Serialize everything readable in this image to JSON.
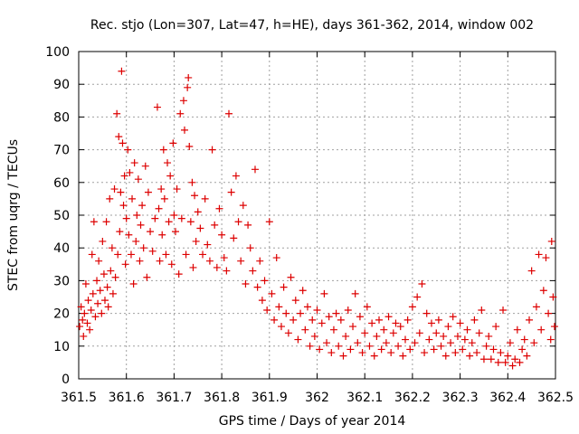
{
  "chart_data": {
    "type": "scatter",
    "title": "Rec. stjo (Lon=307, Lat=47, h=HE), days 361-362, 2014, window 002",
    "xlabel": "GPS time / Days of year 2014",
    "ylabel": "STEC from uqrg / TECUs",
    "xlim": [
      361.5,
      362.5
    ],
    "ylim": [
      0,
      100
    ],
    "grid": true,
    "marker": "+",
    "color": "#dd0000",
    "xticks": [
      "361.5",
      "361.6",
      "361.7",
      "361.8",
      "361.9",
      "362",
      "362.1",
      "362.2",
      "362.3",
      "362.4",
      "362.5"
    ],
    "yticks": [
      "0",
      "10",
      "20",
      "30",
      "40",
      "50",
      "60",
      "70",
      "80",
      "90",
      "100"
    ],
    "series": [
      {
        "points": [
          [
            361.502,
            16
          ],
          [
            361.505,
            22
          ],
          [
            361.508,
            18
          ],
          [
            361.51,
            13
          ],
          [
            361.512,
            20
          ],
          [
            361.515,
            29
          ],
          [
            361.518,
            17
          ],
          [
            361.52,
            24
          ],
          [
            361.523,
            15
          ],
          [
            361.526,
            21
          ],
          [
            361.528,
            38
          ],
          [
            361.53,
            26
          ],
          [
            361.532,
            48
          ],
          [
            361.535,
            19
          ],
          [
            361.538,
            30
          ],
          [
            361.54,
            23
          ],
          [
            361.542,
            36
          ],
          [
            361.545,
            27
          ],
          [
            361.548,
            20
          ],
          [
            361.55,
            42
          ],
          [
            361.553,
            32
          ],
          [
            361.555,
            24
          ],
          [
            361.558,
            48
          ],
          [
            361.56,
            28
          ],
          [
            361.562,
            22
          ],
          [
            361.565,
            55
          ],
          [
            361.567,
            33
          ],
          [
            361.57,
            40
          ],
          [
            361.572,
            26
          ],
          [
            361.575,
            58
          ],
          [
            361.577,
            31
          ],
          [
            361.58,
            81
          ],
          [
            361.582,
            38
          ],
          [
            361.584,
            74
          ],
          [
            361.586,
            45
          ],
          [
            361.588,
            57
          ],
          [
            361.59,
            94
          ],
          [
            361.592,
            72
          ],
          [
            361.594,
            53
          ],
          [
            361.596,
            62
          ],
          [
            361.598,
            35
          ],
          [
            361.6,
            49
          ],
          [
            361.603,
            70
          ],
          [
            361.605,
            44
          ],
          [
            361.607,
            63
          ],
          [
            361.61,
            38
          ],
          [
            361.612,
            55
          ],
          [
            361.615,
            29
          ],
          [
            361.617,
            66
          ],
          [
            361.62,
            42
          ],
          [
            361.622,
            50
          ],
          [
            361.625,
            61
          ],
          [
            361.628,
            36
          ],
          [
            361.63,
            47
          ],
          [
            361.633,
            53
          ],
          [
            361.636,
            40
          ],
          [
            361.64,
            65
          ],
          [
            361.643,
            31
          ],
          [
            361.646,
            57
          ],
          [
            361.65,
            45
          ],
          [
            361.655,
            39
          ],
          [
            361.66,
            49
          ],
          [
            361.665,
            83
          ],
          [
            361.668,
            52
          ],
          [
            361.67,
            36
          ],
          [
            361.673,
            58
          ],
          [
            361.675,
            44
          ],
          [
            361.678,
            70
          ],
          [
            361.68,
            55
          ],
          [
            361.683,
            38
          ],
          [
            361.686,
            66
          ],
          [
            361.689,
            48
          ],
          [
            361.692,
            62
          ],
          [
            361.695,
            35
          ],
          [
            361.698,
            72
          ],
          [
            361.7,
            50
          ],
          [
            361.703,
            45
          ],
          [
            361.706,
            58
          ],
          [
            361.71,
            32
          ],
          [
            361.713,
            81
          ],
          [
            361.716,
            49
          ],
          [
            361.72,
            85
          ],
          [
            361.722,
            76
          ],
          [
            361.725,
            38
          ],
          [
            361.728,
            89
          ],
          [
            361.73,
            92
          ],
          [
            361.732,
            71
          ],
          [
            361.735,
            48
          ],
          [
            361.738,
            60
          ],
          [
            361.74,
            34
          ],
          [
            361.743,
            56
          ],
          [
            361.746,
            42
          ],
          [
            361.75,
            51
          ],
          [
            361.755,
            46
          ],
          [
            361.76,
            38
          ],
          [
            361.765,
            55
          ],
          [
            361.77,
            41
          ],
          [
            361.775,
            36
          ],
          [
            361.78,
            70
          ],
          [
            361.785,
            47
          ],
          [
            361.79,
            34
          ],
          [
            361.795,
            52
          ],
          [
            361.8,
            44
          ],
          [
            361.805,
            37
          ],
          [
            361.81,
            33
          ],
          [
            361.815,
            81
          ],
          [
            361.82,
            57
          ],
          [
            361.825,
            43
          ],
          [
            361.83,
            62
          ],
          [
            361.835,
            48
          ],
          [
            361.84,
            36
          ],
          [
            361.845,
            53
          ],
          [
            361.85,
            29
          ],
          [
            361.855,
            47
          ],
          [
            361.86,
            40
          ],
          [
            361.865,
            33
          ],
          [
            361.87,
            64
          ],
          [
            361.875,
            28
          ],
          [
            361.88,
            36
          ],
          [
            361.885,
            24
          ],
          [
            361.89,
            30
          ],
          [
            361.895,
            21
          ],
          [
            361.9,
            48
          ],
          [
            361.905,
            26
          ],
          [
            361.91,
            18
          ],
          [
            361.915,
            37
          ],
          [
            361.92,
            22
          ],
          [
            361.925,
            16
          ],
          [
            361.93,
            28
          ],
          [
            361.935,
            20
          ],
          [
            361.94,
            14
          ],
          [
            361.945,
            31
          ],
          [
            361.95,
            18
          ],
          [
            361.955,
            24
          ],
          [
            361.96,
            12
          ],
          [
            361.965,
            20
          ],
          [
            361.97,
            27
          ],
          [
            361.975,
            15
          ],
          [
            361.98,
            22
          ],
          [
            361.985,
            10
          ],
          [
            361.99,
            18
          ],
          [
            361.995,
            13
          ],
          [
            362.0,
            21
          ],
          [
            362.005,
            9
          ],
          [
            362.01,
            17
          ],
          [
            362.015,
            26
          ],
          [
            362.02,
            11
          ],
          [
            362.025,
            19
          ],
          [
            362.03,
            8
          ],
          [
            362.035,
            15
          ],
          [
            362.04,
            20
          ],
          [
            362.045,
            10
          ],
          [
            362.05,
            18
          ],
          [
            362.055,
            7
          ],
          [
            362.06,
            13
          ],
          [
            362.065,
            21
          ],
          [
            362.07,
            9
          ],
          [
            362.075,
            16
          ],
          [
            362.08,
            26
          ],
          [
            362.085,
            11
          ],
          [
            362.09,
            19
          ],
          [
            362.095,
            8
          ],
          [
            362.1,
            14
          ],
          [
            362.105,
            22
          ],
          [
            362.11,
            10
          ],
          [
            362.115,
            17
          ],
          [
            362.12,
            7
          ],
          [
            362.125,
            13
          ],
          [
            362.13,
            18
          ],
          [
            362.135,
            9
          ],
          [
            362.14,
            15
          ],
          [
            362.145,
            11
          ],
          [
            362.15,
            19
          ],
          [
            362.155,
            8
          ],
          [
            362.16,
            14
          ],
          [
            362.165,
            17
          ],
          [
            362.17,
            10
          ],
          [
            362.175,
            16
          ],
          [
            362.18,
            7
          ],
          [
            362.185,
            12
          ],
          [
            362.19,
            18
          ],
          [
            362.195,
            9
          ],
          [
            362.2,
            22
          ],
          [
            362.205,
            11
          ],
          [
            362.21,
            25
          ],
          [
            362.215,
            14
          ],
          [
            362.22,
            29
          ],
          [
            362.225,
            8
          ],
          [
            362.23,
            20
          ],
          [
            362.235,
            12
          ],
          [
            362.24,
            17
          ],
          [
            362.245,
            9
          ],
          [
            362.25,
            14
          ],
          [
            362.255,
            18
          ],
          [
            362.26,
            10
          ],
          [
            362.265,
            13
          ],
          [
            362.27,
            7
          ],
          [
            362.275,
            16
          ],
          [
            362.28,
            11
          ],
          [
            362.285,
            19
          ],
          [
            362.29,
            8
          ],
          [
            362.295,
            13
          ],
          [
            362.3,
            17
          ],
          [
            362.305,
            9
          ],
          [
            362.31,
            12
          ],
          [
            362.315,
            15
          ],
          [
            362.32,
            7
          ],
          [
            362.325,
            11
          ],
          [
            362.33,
            18
          ],
          [
            362.335,
            8
          ],
          [
            362.34,
            14
          ],
          [
            362.345,
            21
          ],
          [
            362.35,
            6
          ],
          [
            362.355,
            10
          ],
          [
            362.36,
            13
          ],
          [
            362.365,
            6
          ],
          [
            362.37,
            9
          ],
          [
            362.375,
            16
          ],
          [
            362.38,
            5
          ],
          [
            362.385,
            8
          ],
          [
            362.39,
            21
          ],
          [
            362.395,
            5
          ],
          [
            362.4,
            7
          ],
          [
            362.405,
            11
          ],
          [
            362.41,
            4
          ],
          [
            362.415,
            6
          ],
          [
            362.42,
            15
          ],
          [
            362.425,
            5
          ],
          [
            362.43,
            9
          ],
          [
            362.435,
            12
          ],
          [
            362.44,
            7
          ],
          [
            362.445,
            18
          ],
          [
            362.45,
            33
          ],
          [
            362.455,
            11
          ],
          [
            362.46,
            22
          ],
          [
            362.465,
            38
          ],
          [
            362.47,
            15
          ],
          [
            362.475,
            27
          ],
          [
            362.48,
            37
          ],
          [
            362.485,
            20
          ],
          [
            362.49,
            12
          ],
          [
            362.492,
            42
          ],
          [
            362.495,
            25
          ],
          [
            362.498,
            16
          ]
        ]
      }
    ]
  }
}
